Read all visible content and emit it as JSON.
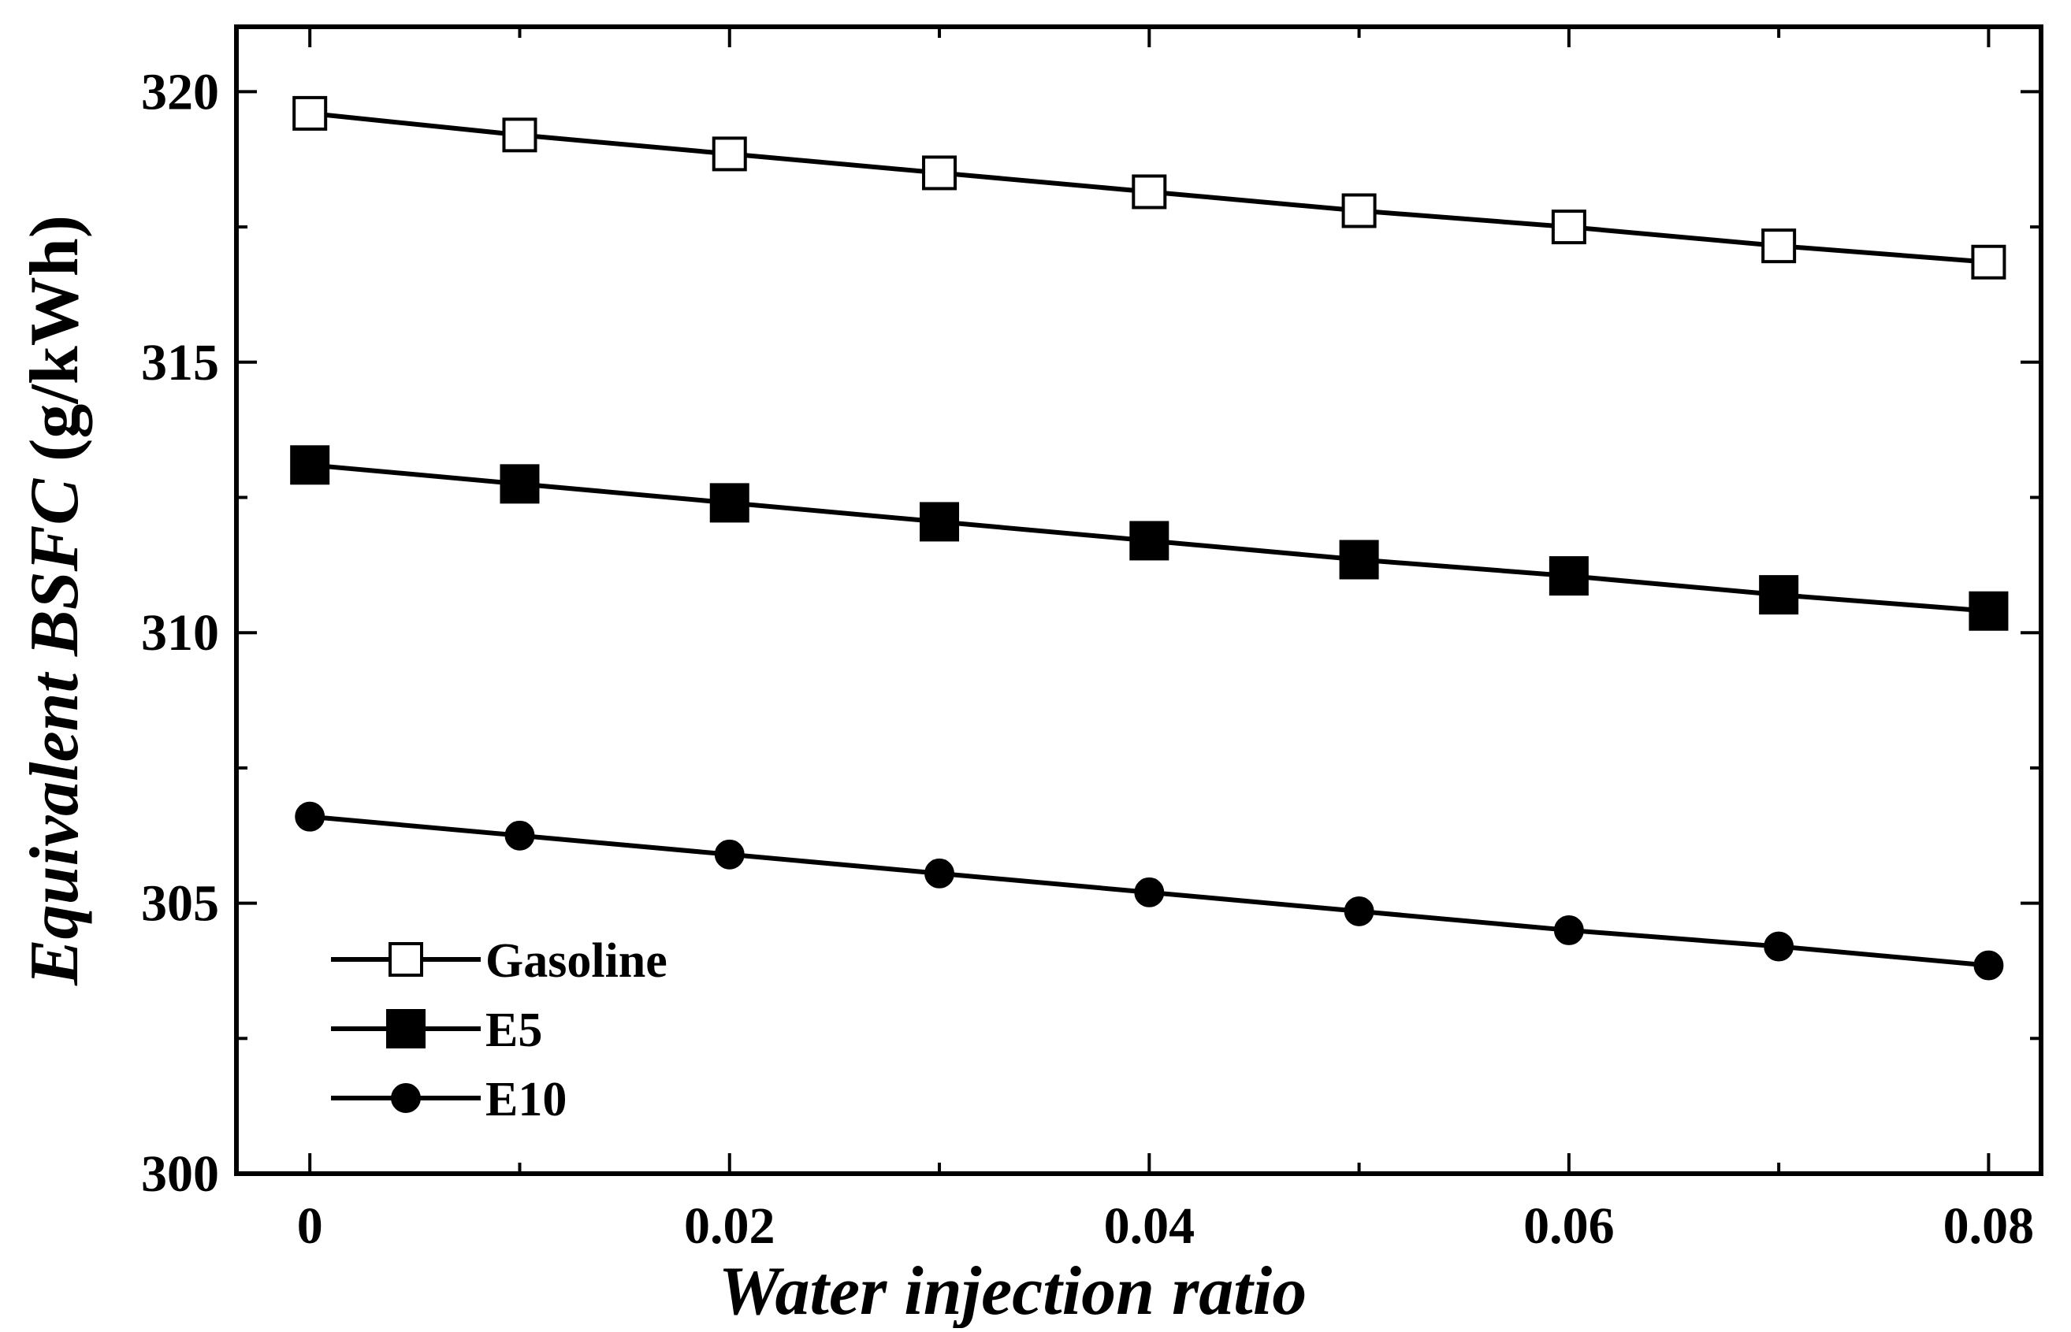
{
  "chart_data": {
    "type": "line",
    "title": "",
    "xlabel": "Water injection ratio",
    "ylabel": {
      "prefix": "Equivalent ",
      "italic_part": "BSFC",
      "units": " (g/kWh)"
    },
    "xlim": [
      -0.0035,
      0.0825
    ],
    "ylim": [
      300,
      321.2
    ],
    "x_ticks": [
      0,
      0.02,
      0.04,
      0.06,
      0.08
    ],
    "x_tick_labels": [
      "0",
      "0.02",
      "0.04",
      "0.06",
      "0.08"
    ],
    "x_minor_ticks": [
      0.01,
      0.03,
      0.05,
      0.07
    ],
    "y_ticks": [
      300,
      305,
      310,
      315,
      320
    ],
    "y_tick_labels": [
      "300",
      "305",
      "310",
      "315",
      "320"
    ],
    "y_minor_ticks": [
      302.5,
      307.5,
      312.5,
      317.5
    ],
    "grid": false,
    "legend_position": "bottom-left",
    "x": [
      0,
      0.01,
      0.02,
      0.03,
      0.04,
      0.05,
      0.06,
      0.07,
      0.08
    ],
    "series": [
      {
        "name": "Gasoline",
        "marker": "open-square",
        "color": "#000000",
        "values": [
          319.6,
          319.2,
          318.85,
          318.5,
          318.15,
          317.8,
          317.5,
          317.15,
          316.85
        ]
      },
      {
        "name": "E5",
        "marker": "filled-square",
        "color": "#000000",
        "values": [
          313.1,
          312.75,
          312.4,
          312.05,
          311.7,
          311.35,
          311.05,
          310.7,
          310.4
        ]
      },
      {
        "name": "E10",
        "marker": "filled-circle",
        "color": "#000000",
        "values": [
          306.6,
          306.25,
          305.9,
          305.55,
          305.2,
          304.85,
          304.5,
          304.2,
          303.85
        ]
      }
    ]
  }
}
